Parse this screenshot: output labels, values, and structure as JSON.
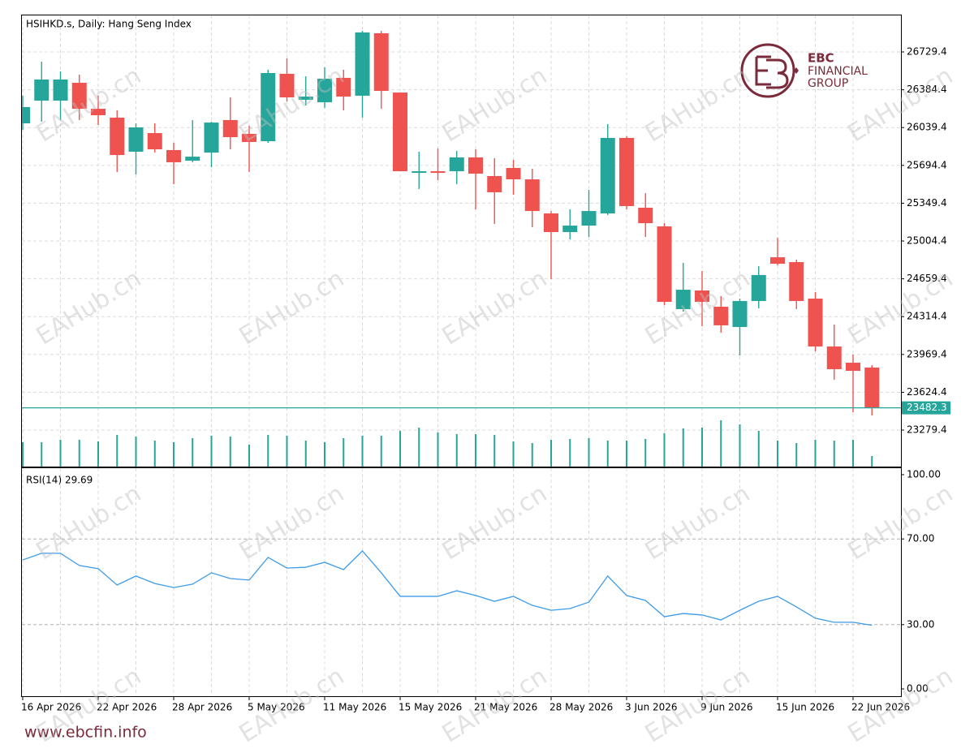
{
  "chart_data": [
    {
      "type": "candlestick",
      "title": "HSIHKD.s, Daily:  Hang Seng Index",
      "categories": [
        "16 Apr 2026",
        null,
        null,
        null,
        "22 Apr 2026",
        null,
        null,
        null,
        "28 Apr 2026",
        null,
        null,
        null,
        "5 May 2026",
        null,
        null,
        null,
        "11 May 2026",
        null,
        null,
        null,
        "15 May 2026",
        null,
        null,
        null,
        "21 May 2026",
        null,
        null,
        null,
        "28 May 2026",
        null,
        null,
        null,
        "3 Jun 2026",
        null,
        null,
        null,
        "9 Jun 2026",
        null,
        null,
        null,
        "15 Jun 2026",
        null,
        null,
        null,
        "22 Jun 2026",
        null
      ],
      "open": [
        26078,
        26285,
        26285,
        26448,
        26211,
        26130,
        25819,
        25989,
        25834,
        25737,
        25811,
        26108,
        25982,
        25915,
        26530,
        26293,
        26270,
        26493,
        26330,
        26900,
        26359,
        25626,
        25641,
        25641,
        25767,
        25597,
        25671,
        25567,
        25256,
        25086,
        25145,
        25256,
        25945,
        25308,
        25138,
        24383,
        24553,
        24405,
        24220,
        24457,
        24856,
        24812,
        24479,
        24042,
        23894,
        23850
      ],
      "high": [
        26330,
        26641,
        26552,
        26522,
        26330,
        26196,
        26078,
        26078,
        25900,
        26108,
        26093,
        26315,
        26056,
        26567,
        26670,
        26507,
        26589,
        26567,
        26922,
        26922,
        26359,
        25819,
        25849,
        25826,
        25841,
        25760,
        25745,
        25663,
        25278,
        25293,
        25471,
        26071,
        25960,
        25441,
        25167,
        24805,
        24731,
        24501,
        24479,
        24775,
        25034,
        24834,
        24538,
        24242,
        23968,
        23872
      ],
      "low": [
        26019,
        26093,
        26108,
        26108,
        26063,
        25634,
        25612,
        25811,
        25523,
        25723,
        25678,
        25841,
        25634,
        25900,
        26278,
        26241,
        26219,
        26196,
        26130,
        26211,
        25641,
        25478,
        25560,
        25523,
        25293,
        25160,
        25427,
        25130,
        24657,
        25019,
        25042,
        25241,
        25293,
        25042,
        24420,
        24360,
        24227,
        24168,
        23961,
        24390,
        24782,
        24383,
        23998,
        23739,
        23442,
        23413
      ],
      "close": [
        26226,
        26478,
        26478,
        26211,
        26152,
        25789,
        26041,
        25841,
        25723,
        25774,
        26085,
        25952,
        25908,
        26537,
        26315,
        26322,
        26485,
        26322,
        26907,
        26374,
        25641,
        25641,
        25626,
        25767,
        25619,
        25449,
        25567,
        25278,
        25086,
        25145,
        25278,
        25945,
        25323,
        25167,
        24449,
        24560,
        24449,
        24235,
        24457,
        24694,
        24797,
        24457,
        24042,
        23835,
        23820,
        23482.3
      ],
      "volume": [
        30,
        30,
        33,
        33,
        31,
        39,
        37,
        32,
        30,
        35,
        38,
        37,
        27,
        39,
        38,
        32,
        30,
        35,
        38,
        38,
        44,
        48,
        42,
        40,
        40,
        39,
        31,
        29,
        33,
        34,
        35,
        32,
        32,
        34,
        41,
        47,
        48,
        57,
        52,
        44,
        32,
        29,
        33,
        32,
        33,
        13
      ],
      "up_color": "#26a69a",
      "down_color": "#ef5350",
      "volume_color": "#26a69a",
      "ylim": [
        22946.5,
        27070
      ],
      "yticks": [
        26729.4,
        26384.4,
        26039.4,
        25694.4,
        25349.4,
        25004.4,
        24659.4,
        24314.4,
        23969.4,
        23624.4,
        23279.4
      ],
      "last_price": 23482.3,
      "grid": true
    },
    {
      "type": "line",
      "title": "RSI(14) 29.69",
      "color": "#3d9be9",
      "values": [
        60.2,
        63.3,
        63.3,
        57.6,
        56.1,
        48.5,
        52.7,
        49.2,
        47.3,
        48.9,
        54.2,
        51.5,
        50.8,
        61.4,
        56.4,
        56.8,
        59.1,
        55.7,
        64.4,
        54.2,
        43.2,
        43.2,
        43.2,
        45.8,
        43.6,
        40.9,
        43.2,
        39.0,
        36.7,
        37.5,
        40.5,
        52.7,
        43.6,
        41.3,
        33.7,
        35.2,
        34.5,
        32.2,
        36.7,
        40.9,
        43.2,
        38.3,
        33.0,
        31.1,
        31.1,
        29.69
      ],
      "ylim": [
        -3.4,
        103.4
      ],
      "yticks": [
        {
          "value": 100,
          "label": "100.00"
        },
        {
          "value": 70,
          "label": "70.00"
        },
        {
          "value": 30,
          "label": "30.00"
        },
        {
          "value": 0,
          "label": "0.00"
        }
      ],
      "levels": [
        70,
        30
      ]
    }
  ],
  "logo": {
    "line1": "EBC",
    "line2": "FINANCIAL",
    "line3": "GROUP"
  },
  "footer": "www.ebcfin.info",
  "watermark": "EAHub.cn"
}
